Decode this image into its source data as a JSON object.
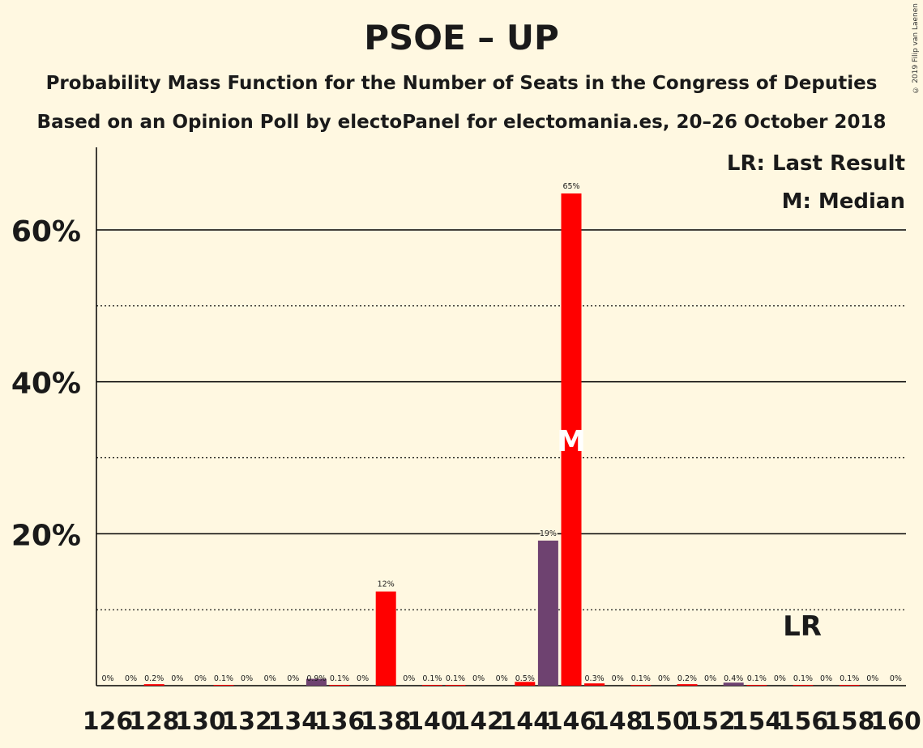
{
  "chart_data": {
    "type": "bar",
    "title": "PSOE – UP",
    "subtitle": "Probability Mass Function for the Number of Seats in the Congress of Deputies",
    "subtitle2": "Based on an Opinion Poll by electoPanel for electomania.es, 20–26 October 2018",
    "copyright": "© 2019 Filip van Laenen",
    "legend": [
      "LR: Last Result",
      "M: Median"
    ],
    "legend_position": "top-right",
    "ylim": [
      0,
      70
    ],
    "y_ticks": [
      {
        "v": 20,
        "label": "20%"
      },
      {
        "v": 40,
        "label": "40%"
      },
      {
        "v": 60,
        "label": "60%"
      }
    ],
    "minor_gridlines": [
      10,
      30,
      50
    ],
    "x_tick_labels": [
      "126",
      "128",
      "130",
      "132",
      "134",
      "136",
      "138",
      "140",
      "142",
      "144",
      "146",
      "148",
      "150",
      "152",
      "154",
      "156",
      "158",
      "160"
    ],
    "median_seat": 146,
    "median_marker": "M",
    "last_result_seat": 156,
    "last_result_marker": "LR",
    "colors": {
      "red": "#ff0000",
      "purple": "#6e4270",
      "background": "#fff8e1"
    },
    "bars": [
      {
        "seat": 126,
        "value": 0,
        "label": "0%",
        "color": "red"
      },
      {
        "seat": 127,
        "value": 0,
        "label": "0%",
        "color": "red"
      },
      {
        "seat": 128,
        "value": 0.2,
        "label": "0.2%",
        "color": "red"
      },
      {
        "seat": 129,
        "value": 0,
        "label": "0%",
        "color": "red"
      },
      {
        "seat": 130,
        "value": 0,
        "label": "0%",
        "color": "red"
      },
      {
        "seat": 131,
        "value": 0.1,
        "label": "0.1%",
        "color": "red"
      },
      {
        "seat": 132,
        "value": 0,
        "label": "0%",
        "color": "red"
      },
      {
        "seat": 133,
        "value": 0,
        "label": "0%",
        "color": "red"
      },
      {
        "seat": 134,
        "value": 0,
        "label": "0%",
        "color": "red"
      },
      {
        "seat": 135,
        "value": 0.9,
        "label": "0.9%",
        "color": "purple"
      },
      {
        "seat": 136,
        "value": 0.1,
        "label": "0.1%",
        "color": "red"
      },
      {
        "seat": 137,
        "value": 0,
        "label": "0%",
        "color": "red"
      },
      {
        "seat": 138,
        "value": 12.4,
        "label": "12%",
        "color": "red"
      },
      {
        "seat": 139,
        "value": 0,
        "label": "0%",
        "color": "red"
      },
      {
        "seat": 140,
        "value": 0.1,
        "label": "0.1%",
        "color": "red"
      },
      {
        "seat": 141,
        "value": 0.1,
        "label": "0.1%",
        "color": "red"
      },
      {
        "seat": 142,
        "value": 0,
        "label": "0%",
        "color": "red"
      },
      {
        "seat": 143,
        "value": 0,
        "label": "0%",
        "color": "red"
      },
      {
        "seat": 144,
        "value": 0.5,
        "label": "0.5%",
        "color": "red"
      },
      {
        "seat": 145,
        "value": 19.1,
        "label": "19%",
        "color": "purple"
      },
      {
        "seat": 146,
        "value": 64.8,
        "label": "65%",
        "color": "red"
      },
      {
        "seat": 147,
        "value": 0.3,
        "label": "0.3%",
        "color": "red"
      },
      {
        "seat": 148,
        "value": 0,
        "label": "0%",
        "color": "red"
      },
      {
        "seat": 149,
        "value": 0.1,
        "label": "0.1%",
        "color": "red"
      },
      {
        "seat": 150,
        "value": 0,
        "label": "0%",
        "color": "red"
      },
      {
        "seat": 151,
        "value": 0.2,
        "label": "0.2%",
        "color": "red"
      },
      {
        "seat": 152,
        "value": 0,
        "label": "0%",
        "color": "red"
      },
      {
        "seat": 153,
        "value": 0.4,
        "label": "0.4%",
        "color": "purple"
      },
      {
        "seat": 154,
        "value": 0.1,
        "label": "0.1%",
        "color": "red"
      },
      {
        "seat": 155,
        "value": 0,
        "label": "0%",
        "color": "red"
      },
      {
        "seat": 156,
        "value": 0.1,
        "label": "0.1%",
        "color": "red"
      },
      {
        "seat": 157,
        "value": 0,
        "label": "0%",
        "color": "red"
      },
      {
        "seat": 158,
        "value": 0.1,
        "label": "0.1%",
        "color": "red"
      },
      {
        "seat": 159,
        "value": 0,
        "label": "0%",
        "color": "red"
      },
      {
        "seat": 160,
        "value": 0,
        "label": "0%",
        "color": "red"
      }
    ]
  }
}
